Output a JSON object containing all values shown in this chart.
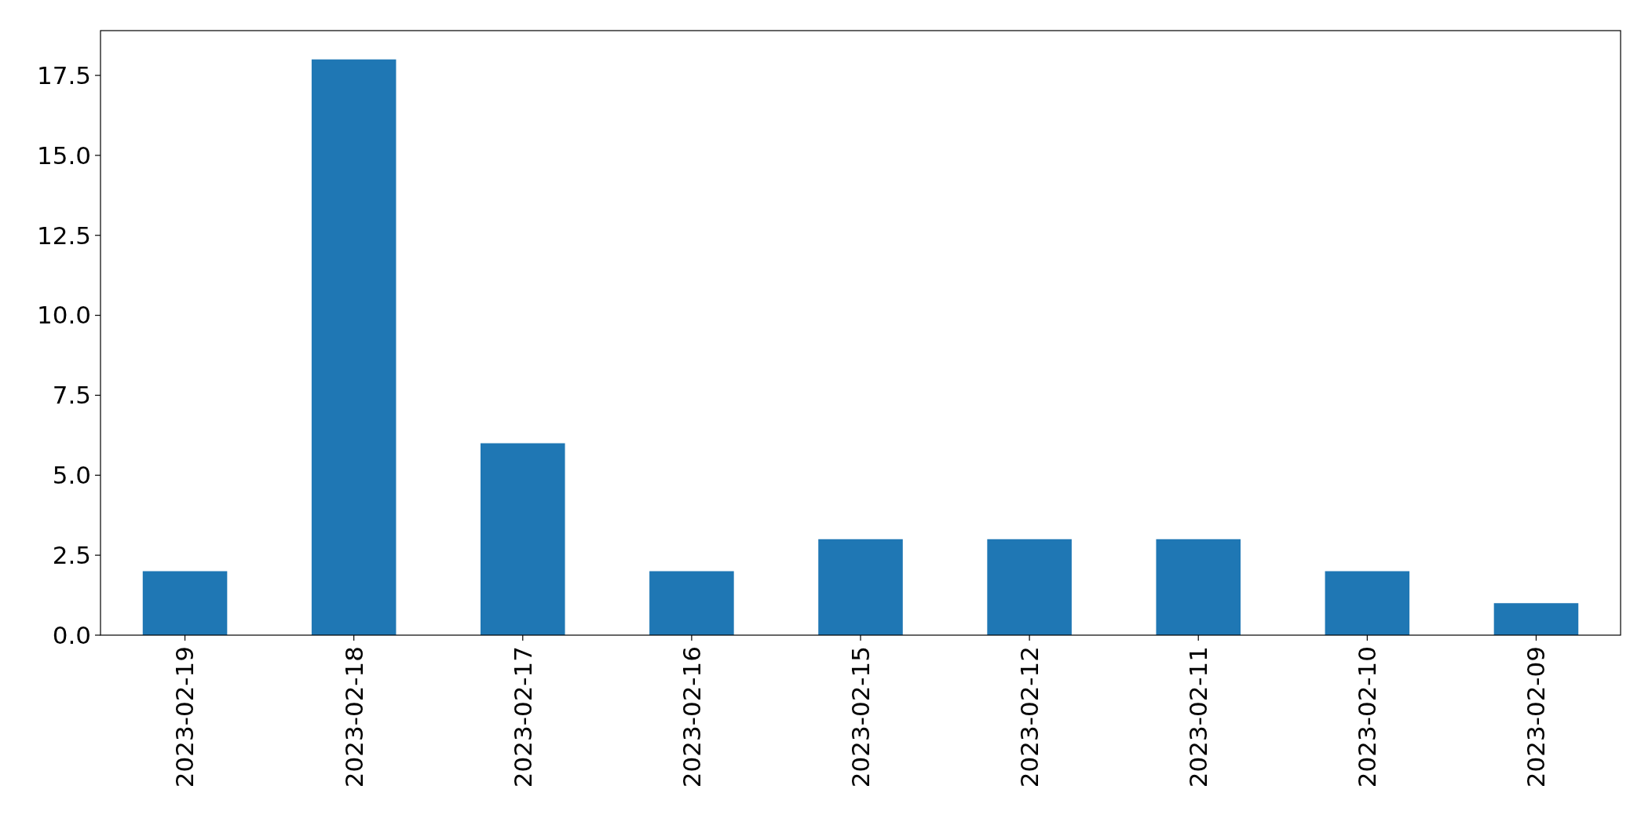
{
  "chart_data": {
    "type": "bar",
    "categories": [
      "2023-02-19",
      "2023-02-18",
      "2023-02-17",
      "2023-02-16",
      "2023-02-15",
      "2023-02-12",
      "2023-02-11",
      "2023-02-10",
      "2023-02-09"
    ],
    "values": [
      2,
      18,
      6,
      2,
      3,
      3,
      3,
      2,
      1
    ],
    "color": "#1f77b4",
    "ylim": [
      0,
      18.9
    ],
    "yticks": [
      {
        "value": 0,
        "label": "0.0"
      },
      {
        "value": 2.5,
        "label": "2.5"
      },
      {
        "value": 5,
        "label": "5.0"
      },
      {
        "value": 7.5,
        "label": "7.5"
      },
      {
        "value": 10,
        "label": "10.0"
      },
      {
        "value": 12.5,
        "label": "12.5"
      },
      {
        "value": 15,
        "label": "15.0"
      },
      {
        "value": 17.5,
        "label": "17.5"
      }
    ],
    "grid": false
  }
}
